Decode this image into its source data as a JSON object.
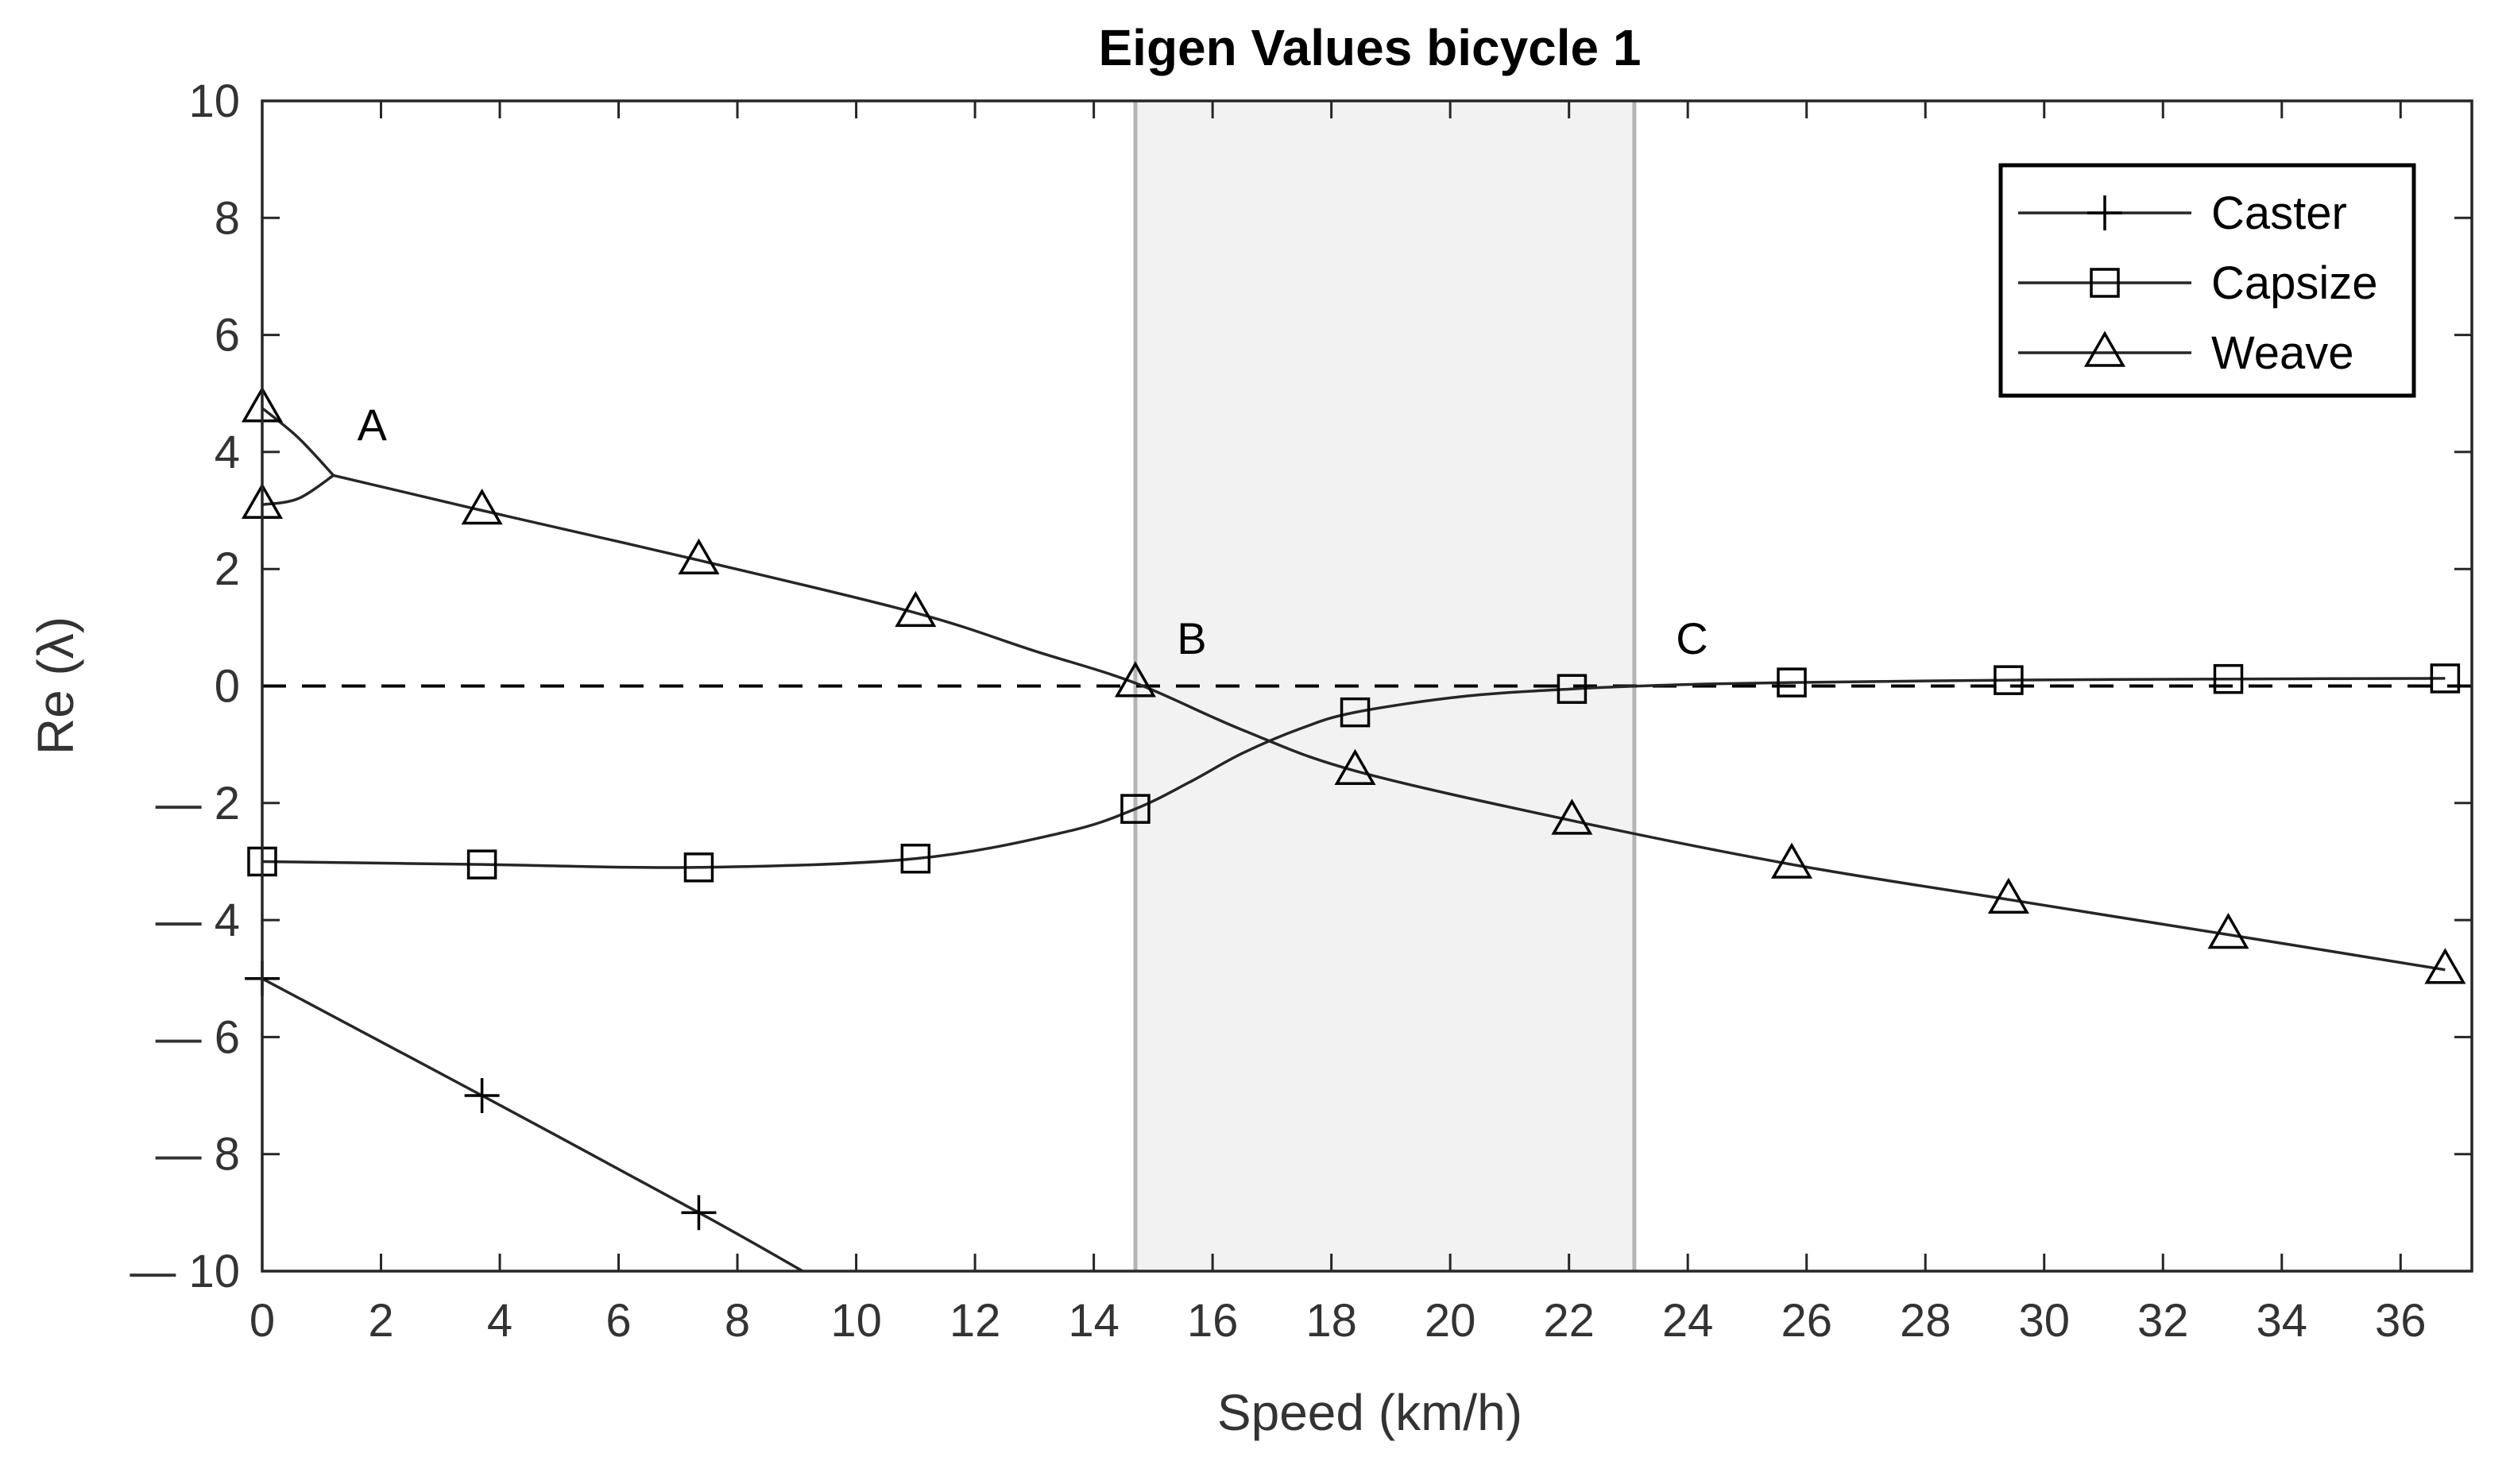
{
  "chart_data": {
    "type": "line",
    "title": "Eigen Values bicycle 1",
    "xlabel": "Speed (km/h)",
    "ylabel": "Re (λ)",
    "xlim": [
      0,
      37.2
    ],
    "ylim": [
      -10,
      10
    ],
    "x_ticks": [
      0,
      2,
      4,
      6,
      8,
      10,
      12,
      14,
      16,
      18,
      20,
      22,
      24,
      26,
      28,
      30,
      32,
      34,
      36
    ],
    "y_ticks": [
      10,
      8,
      6,
      4,
      2,
      0,
      -2,
      -4,
      -6,
      -8,
      -10
    ],
    "y_tick_labels": [
      "10",
      "8",
      "6",
      "4",
      "2",
      "0",
      "— 2",
      "— 4",
      "— 6",
      "— 8",
      "— 10"
    ],
    "grid": false,
    "zero_line": "dashed",
    "shaded_region": {
      "x_range": [
        14.7,
        23.1
      ],
      "color": "#f2f2f2",
      "border_color": "#b4b4b4"
    },
    "legend": {
      "placement": "top-right",
      "entries": [
        {
          "label": "Caster",
          "marker": "plus"
        },
        {
          "label": "Capsize",
          "marker": "square"
        },
        {
          "label": "Weave",
          "marker": "triangle"
        }
      ]
    },
    "series": [
      {
        "name": "Caster",
        "marker": "plus",
        "x": [
          0,
          3.7,
          7.35,
          9.1
        ],
        "y": [
          -5.0,
          -7.0,
          -9.0,
          -10.0
        ],
        "markers_x": [
          0,
          3.7,
          7.35
        ],
        "markers_y": [
          -5.0,
          -7.0,
          -9.0
        ]
      },
      {
        "name": "Capsize",
        "marker": "square",
        "x": [
          0,
          3.7,
          7.35,
          11.0,
          13.5,
          14.7,
          15.6,
          16.5,
          17.5,
          18.4,
          20.2,
          22.05,
          23.8,
          25.75,
          29.4,
          33.1,
          36.75
        ],
        "y": [
          -3.0,
          -3.05,
          -3.1,
          -2.95,
          -2.5,
          -2.1,
          -1.65,
          -1.15,
          -0.72,
          -0.45,
          -0.18,
          -0.05,
          0.02,
          0.06,
          0.1,
          0.12,
          0.13
        ],
        "markers_x": [
          0,
          3.7,
          7.35,
          11.0,
          14.7,
          18.4,
          22.05,
          25.75,
          29.4,
          33.1,
          36.75
        ],
        "markers_y": [
          -3.0,
          -3.05,
          -3.1,
          -2.95,
          -2.1,
          -0.45,
          -0.05,
          0.06,
          0.1,
          0.12,
          0.13
        ]
      },
      {
        "name": "Weave",
        "marker": "triangle",
        "x": [
          1.2,
          3.7,
          7.35,
          11.0,
          13.0,
          14.7,
          16.5,
          18.4,
          22.05,
          25.75,
          29.4,
          33.1,
          36.75
        ],
        "y": [
          3.6,
          3.0,
          2.15,
          1.25,
          0.6,
          0.05,
          -0.75,
          -1.45,
          -2.3,
          -3.05,
          -3.65,
          -4.25,
          -4.85
        ],
        "markers_x": [
          0,
          0,
          3.7,
          7.35,
          11.0,
          14.7,
          18.4,
          22.05,
          25.75,
          29.4,
          33.1,
          36.75
        ],
        "markers_y": [
          4.75,
          3.1,
          3.0,
          2.15,
          1.25,
          0.05,
          -1.45,
          -2.3,
          -3.05,
          -3.65,
          -4.25,
          -4.85
        ],
        "branch_upper": {
          "x": [
            0,
            0.6,
            1.2
          ],
          "y": [
            4.75,
            4.25,
            3.6
          ]
        },
        "branch_lower": {
          "x": [
            0,
            0.6,
            1.2
          ],
          "y": [
            3.1,
            3.2,
            3.6
          ]
        }
      }
    ],
    "annotations": [
      {
        "text": "A",
        "x": 1.6,
        "y": 4.2
      },
      {
        "text": "B",
        "x": 15.4,
        "y": 0.55
      },
      {
        "text": "C",
        "x": 23.8,
        "y": 0.55
      }
    ]
  }
}
